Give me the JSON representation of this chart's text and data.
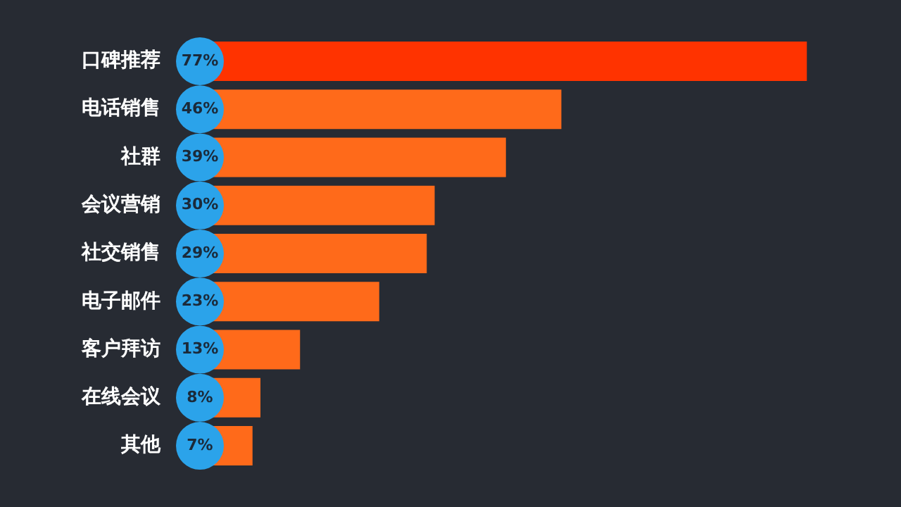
{
  "chart_data": {
    "type": "bar",
    "orientation": "horizontal",
    "categories": [
      "口碑推荐",
      "电话销售",
      "社群",
      "会议营销",
      "社交销售",
      "电子邮件",
      "客户拜访",
      "在线会议",
      "其他"
    ],
    "values": [
      77,
      46,
      39,
      30,
      29,
      23,
      13,
      8,
      7
    ],
    "colors": [
      "#ff3300",
      "#ff6a1a",
      "#ff6a1a",
      "#ff6a1a",
      "#ff6a1a",
      "#ff6a1a",
      "#ff6a1a",
      "#ff6a1a",
      "#ff6a1a"
    ],
    "value_labels": [
      "77%",
      "46%",
      "39%",
      "30%",
      "29%",
      "23%",
      "13%",
      "8%",
      "7%"
    ]
  }
}
